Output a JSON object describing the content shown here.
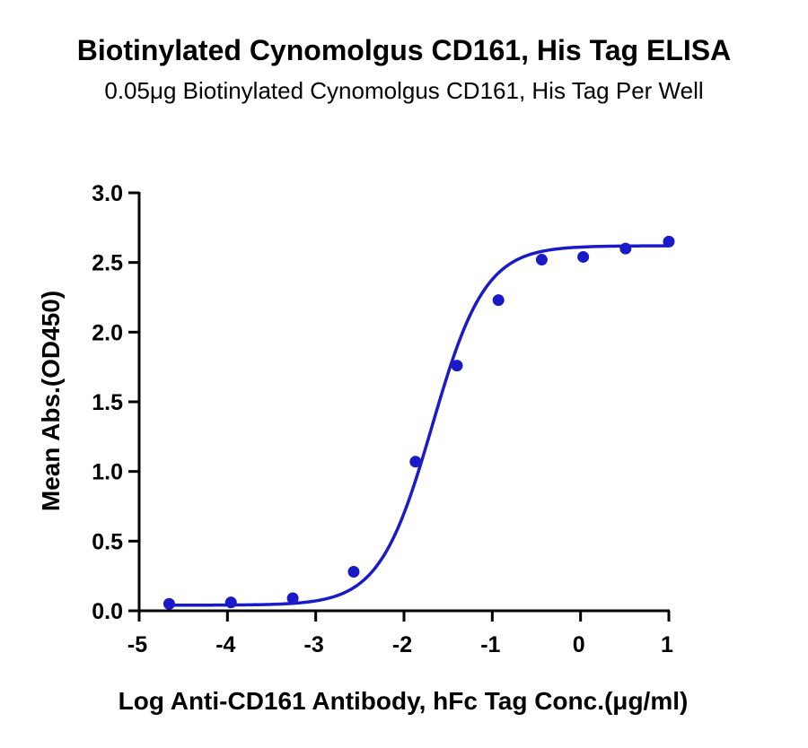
{
  "chart_data": {
    "type": "scatter",
    "title": "Biotinylated Cynomolgus CD161, His Tag ELISA",
    "subtitle": "0.05μg Biotinylated Cynomolgus CD161, His Tag Per Well",
    "xlabel": "Log Anti-CD161 Antibody, hFc Tag Conc.(μg/ml)",
    "ylabel": "Mean Abs.(OD450)",
    "xlim": [
      -5,
      1
    ],
    "ylim": [
      0,
      3
    ],
    "xticks": [
      "-5",
      "-4",
      "-3",
      "-2",
      "-1",
      "0",
      "1"
    ],
    "yticks": [
      "0.0",
      "0.5",
      "1.0",
      "1.5",
      "2.0",
      "2.5",
      "3.0"
    ],
    "grid": false,
    "series": [
      {
        "color": "#1a1ac8",
        "points": [
          {
            "x": -4.66,
            "y": 0.05
          },
          {
            "x": -3.96,
            "y": 0.06
          },
          {
            "x": -3.26,
            "y": 0.09
          },
          {
            "x": -2.57,
            "y": 0.28
          },
          {
            "x": -1.87,
            "y": 1.07
          },
          {
            "x": -1.4,
            "y": 1.76
          },
          {
            "x": -0.93,
            "y": 2.23
          },
          {
            "x": -0.44,
            "y": 2.52
          },
          {
            "x": 0.03,
            "y": 2.54
          },
          {
            "x": 0.51,
            "y": 2.6
          },
          {
            "x": 1.0,
            "y": 2.65
          }
        ],
        "fit": {
          "model": "4PL",
          "bottom": 0.04,
          "top": 2.62,
          "log_ec50": -1.68,
          "hill": 1.45
        }
      }
    ]
  }
}
